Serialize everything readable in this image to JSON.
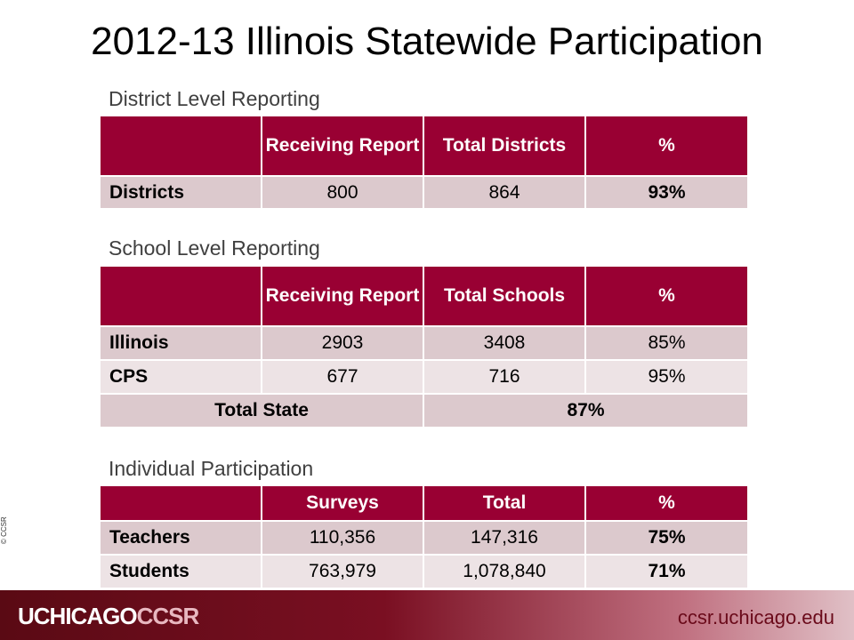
{
  "title": "2012-13 Illinois Statewide Participation",
  "district": {
    "heading": "District Level Reporting",
    "headers": [
      "",
      "Receiving Report",
      "Total Districts",
      "%"
    ],
    "rows": [
      {
        "label": "Districts",
        "receiving": "800",
        "total": "864",
        "pct": "93%"
      }
    ]
  },
  "school": {
    "heading": "School Level Reporting",
    "headers": [
      "",
      "Receiving Report",
      "Total Schools",
      "%"
    ],
    "rows": [
      {
        "label": "Illinois",
        "receiving": "2903",
        "total": "3408",
        "pct": "85%"
      },
      {
        "label": "CPS",
        "receiving": "677",
        "total": "716",
        "pct": "95%"
      }
    ],
    "total_row": {
      "label": "Total State",
      "pct": "87%"
    }
  },
  "individual": {
    "heading": "Individual Participation",
    "headers": [
      "",
      "Surveys",
      "Total",
      "%"
    ],
    "rows": [
      {
        "label": "Teachers",
        "surveys": "110,356",
        "total": "147,316",
        "pct": "75%"
      },
      {
        "label": "Students",
        "surveys": "763,979",
        "total": "1,078,840",
        "pct": "71%"
      }
    ]
  },
  "side_credit": "© CCSR",
  "footer": {
    "logo_main": "UCHICAGO",
    "logo_accent": "CCSR",
    "url": "ccsr.uchicago.edu"
  }
}
